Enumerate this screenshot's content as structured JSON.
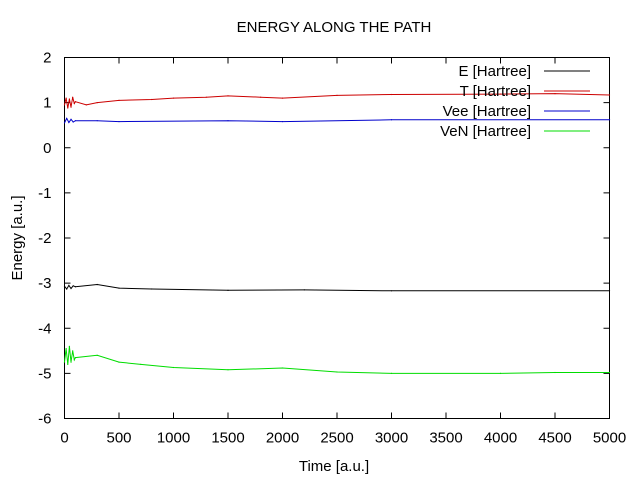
{
  "chart_data": {
    "type": "line",
    "title": "ENERGY ALONG THE PATH",
    "xlabel": "Time [a.u.]",
    "ylabel": "Energy [a.u.]",
    "xlim": [
      0,
      5000
    ],
    "ylim": [
      -6,
      2
    ],
    "xticks": [
      0,
      500,
      1000,
      1500,
      2000,
      2500,
      3000,
      3500,
      4000,
      4500,
      5000
    ],
    "yticks": [
      2,
      1,
      0,
      -1,
      -2,
      -3,
      -4,
      -5,
      -6
    ],
    "grid": false,
    "legend_position": "top-right",
    "series": [
      {
        "name": "E [Hartree]",
        "color": "#000000",
        "x": [
          0,
          20,
          40,
          60,
          80,
          100,
          300,
          500,
          800,
          1500,
          2200,
          3000,
          5000
        ],
        "y": [
          -3.07,
          -3.13,
          -3.05,
          -3.12,
          -3.06,
          -3.08,
          -3.03,
          -3.11,
          -3.13,
          -3.16,
          -3.15,
          -3.17,
          -3.17
        ]
      },
      {
        "name": "T [Hartree]",
        "color": "#cc0000",
        "x": [
          0,
          15,
          30,
          45,
          60,
          75,
          90,
          100,
          200,
          300,
          500,
          800,
          1000,
          1300,
          1500,
          1800,
          2000,
          2500,
          3000,
          4000,
          4500,
          5000
        ],
        "y": [
          0.95,
          1.1,
          0.88,
          1.08,
          0.9,
          1.12,
          0.98,
          1.02,
          0.95,
          1.0,
          1.05,
          1.07,
          1.1,
          1.12,
          1.15,
          1.12,
          1.1,
          1.16,
          1.18,
          1.19,
          1.2,
          1.17
        ]
      },
      {
        "name": "Vee [Hartree]",
        "color": "#0000cc",
        "x": [
          0,
          20,
          40,
          60,
          80,
          100,
          300,
          500,
          1500,
          2000,
          3000,
          5000
        ],
        "y": [
          0.55,
          0.65,
          0.56,
          0.63,
          0.57,
          0.6,
          0.6,
          0.58,
          0.6,
          0.58,
          0.62,
          0.62
        ]
      },
      {
        "name": "VeN [Hartree]",
        "color": "#00dd00",
        "x": [
          0,
          15,
          30,
          45,
          60,
          75,
          90,
          100,
          300,
          500,
          700,
          1000,
          1500,
          2000,
          2500,
          3000,
          4000,
          4500,
          5000
        ],
        "y": [
          -4.75,
          -4.45,
          -4.8,
          -4.4,
          -4.75,
          -4.5,
          -4.7,
          -4.65,
          -4.6,
          -4.75,
          -4.8,
          -4.87,
          -4.92,
          -4.88,
          -4.97,
          -5.0,
          -5.0,
          -4.98,
          -4.98
        ]
      }
    ]
  }
}
